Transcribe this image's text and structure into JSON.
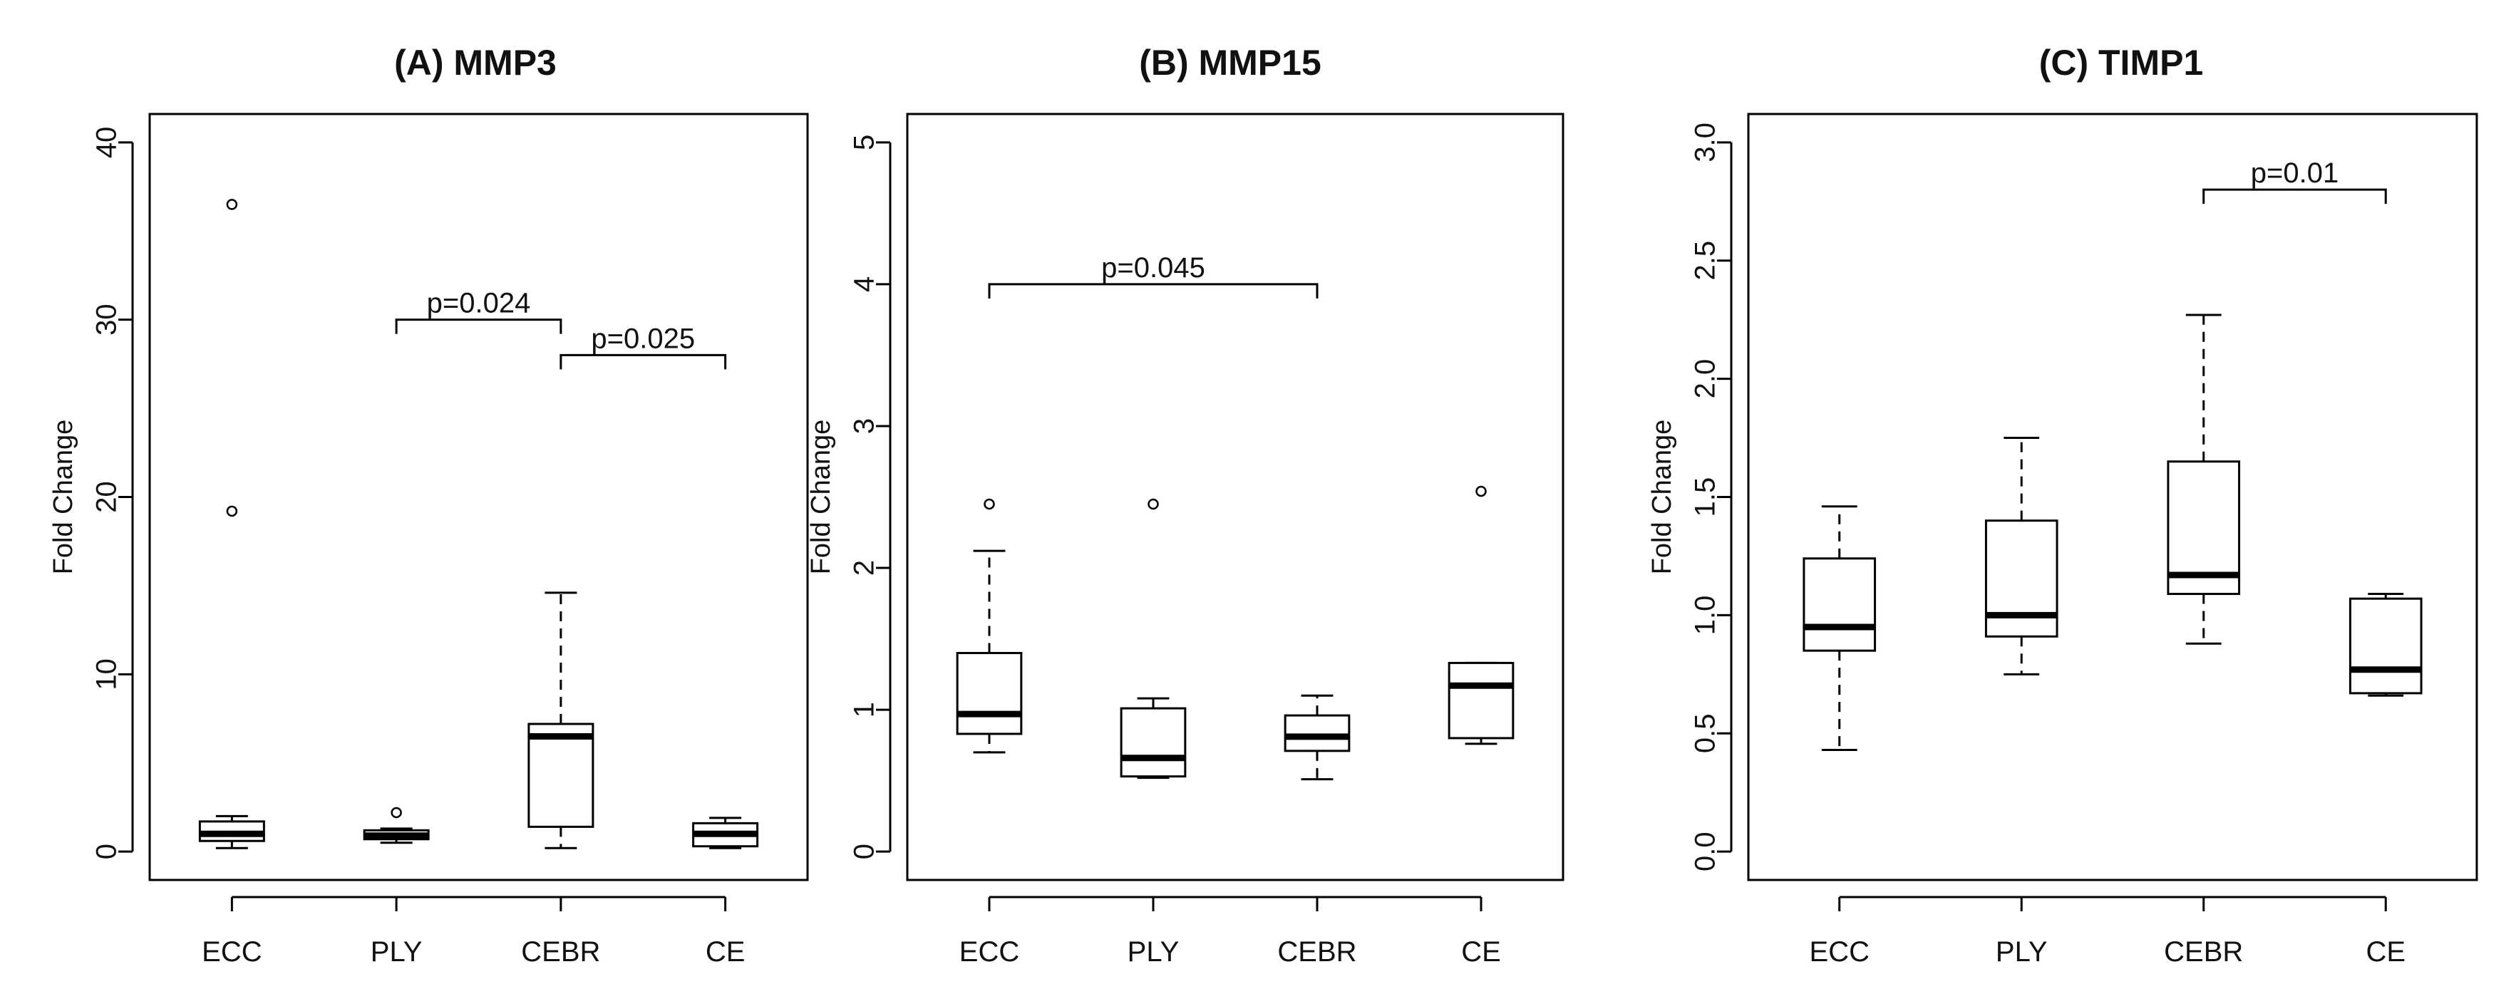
{
  "chart_data": [
    {
      "type": "boxplot",
      "title": "(A) MMP3",
      "xlabel": "",
      "ylabel": "Fold Change",
      "ylim": [
        -1.6,
        41.6
      ],
      "yticks": [
        0,
        10,
        20,
        30,
        40
      ],
      "ytick_labels": [
        "0",
        "10",
        "20",
        "30",
        "40"
      ],
      "categories": [
        "ECC",
        "PLY",
        "CEBR",
        "CE"
      ],
      "boxes": [
        {
          "group": "ECC",
          "whisker_low": 0.2,
          "q1": 0.6,
          "median": 1.0,
          "q3": 1.7,
          "whisker_high": 2.0,
          "outliers": [
            19.2,
            36.5
          ]
        },
        {
          "group": "PLY",
          "whisker_low": 0.5,
          "q1": 0.7,
          "median": 0.9,
          "q3": 1.2,
          "whisker_high": 1.3,
          "outliers": [
            2.2
          ]
        },
        {
          "group": "CEBR",
          "whisker_low": 0.2,
          "q1": 1.4,
          "median": 6.5,
          "q3": 7.2,
          "whisker_high": 14.6,
          "outliers": []
        },
        {
          "group": "CE",
          "whisker_low": 0.2,
          "q1": 0.3,
          "median": 1.0,
          "q3": 1.6,
          "whisker_high": 1.9,
          "outliers": []
        }
      ],
      "annotations": [
        {
          "label": "p=0.024",
          "from": "PLY",
          "to": "CEBR",
          "y": 30
        },
        {
          "label": "p=0.025",
          "from": "CEBR",
          "to": "CE",
          "y": 28
        }
      ]
    },
    {
      "type": "boxplot",
      "title": "(B) MMP15",
      "xlabel": "",
      "ylabel": "Fold Change",
      "ylim": [
        -0.2,
        5.2
      ],
      "yticks": [
        0,
        1,
        2,
        3,
        4,
        5
      ],
      "ytick_labels": [
        "0",
        "1",
        "2",
        "3",
        "4",
        "5"
      ],
      "categories": [
        "ECC",
        "PLY",
        "CEBR",
        "CE"
      ],
      "boxes": [
        {
          "group": "ECC",
          "whisker_low": 0.7,
          "q1": 0.83,
          "median": 0.97,
          "q3": 1.4,
          "whisker_high": 2.12,
          "outliers": [
            2.45
          ]
        },
        {
          "group": "PLY",
          "whisker_low": 0.52,
          "q1": 0.53,
          "median": 0.66,
          "q3": 1.01,
          "whisker_high": 1.08,
          "outliers": [
            2.45
          ]
        },
        {
          "group": "CEBR",
          "whisker_low": 0.51,
          "q1": 0.71,
          "median": 0.81,
          "q3": 0.96,
          "whisker_high": 1.1,
          "outliers": []
        },
        {
          "group": "CE",
          "whisker_low": 0.76,
          "q1": 0.8,
          "median": 1.17,
          "q3": 1.33,
          "whisker_high": 1.33,
          "outliers": [
            2.54
          ]
        }
      ],
      "annotations": [
        {
          "label": "p=0.045",
          "from": "ECC",
          "to": "CEBR",
          "y": 4.0
        }
      ]
    },
    {
      "type": "boxplot",
      "title": "(C) TIMP1",
      "xlabel": "",
      "ylabel": "Fold Change",
      "ylim": [
        -0.12,
        3.12
      ],
      "yticks": [
        0.0,
        0.5,
        1.0,
        1.5,
        2.0,
        2.5,
        3.0
      ],
      "ytick_labels": [
        "0.0",
        "0.5",
        "1.0",
        "1.5",
        "2.0",
        "2.5",
        "3.0"
      ],
      "categories": [
        "ECC",
        "PLY",
        "CEBR",
        "CE"
      ],
      "boxes": [
        {
          "group": "ECC",
          "whisker_low": 0.43,
          "q1": 0.85,
          "median": 0.95,
          "q3": 1.24,
          "whisker_high": 1.46,
          "outliers": []
        },
        {
          "group": "PLY",
          "whisker_low": 0.75,
          "q1": 0.91,
          "median": 1.0,
          "q3": 1.4,
          "whisker_high": 1.75,
          "outliers": []
        },
        {
          "group": "CEBR",
          "whisker_low": 0.88,
          "q1": 1.09,
          "median": 1.17,
          "q3": 1.65,
          "whisker_high": 2.27,
          "outliers": []
        },
        {
          "group": "CE",
          "whisker_low": 0.66,
          "q1": 0.67,
          "median": 0.77,
          "q3": 1.07,
          "whisker_high": 1.09,
          "outliers": []
        }
      ],
      "annotations": [
        {
          "label": "p=0.01",
          "from": "CEBR",
          "to": "CE",
          "y": 2.8
        }
      ]
    }
  ]
}
